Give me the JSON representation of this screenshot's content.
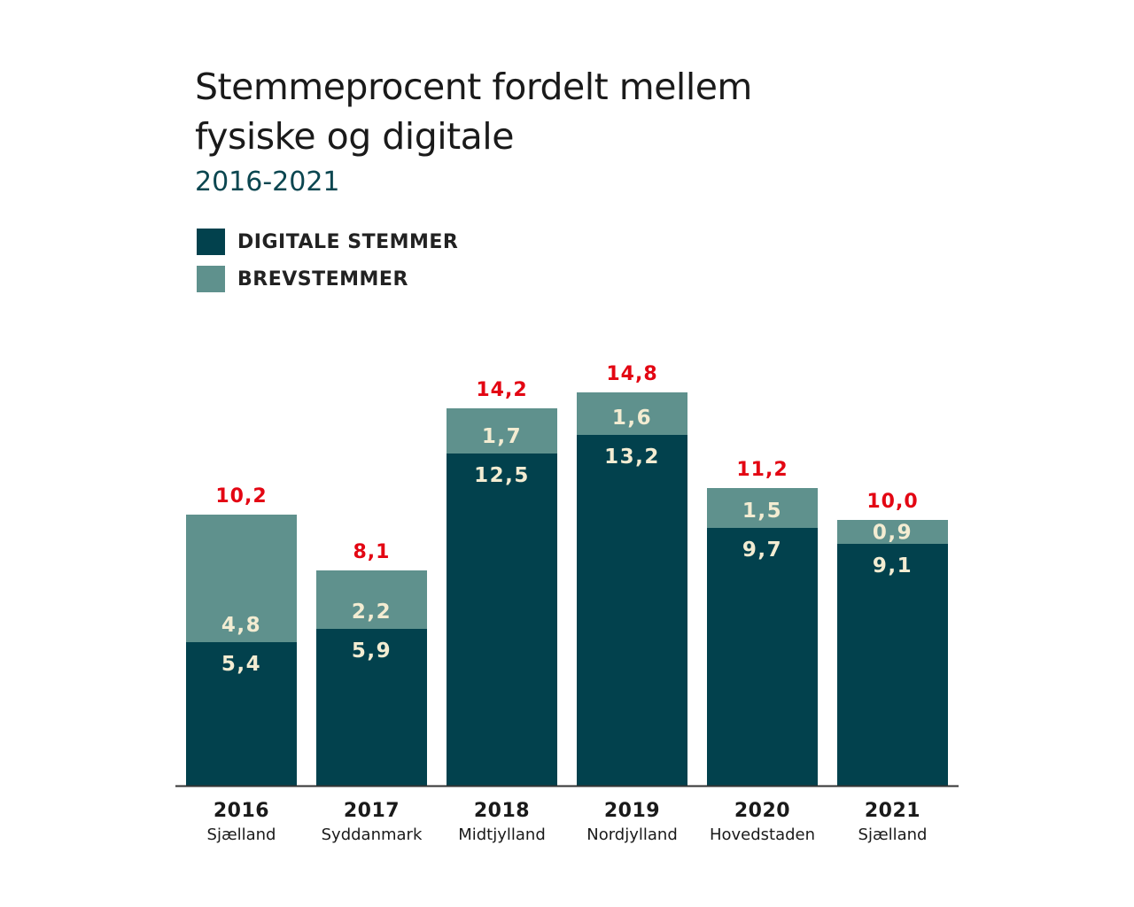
{
  "title_line1": "Stemmeprocent fordelt mellem",
  "title_line2": "fysiske og digitale",
  "subtitle": "2016-2021",
  "colors": {
    "digital": "#02414d",
    "brev": "#5f918d",
    "total_label": "#e30613",
    "segment_label": "#f3ecd2",
    "axis": "#333333"
  },
  "chart_data": {
    "type": "bar",
    "stacked": true,
    "categories": [
      "2016",
      "2017",
      "2018",
      "2019",
      "2020",
      "2021"
    ],
    "category_sublabels": [
      "Sjælland",
      "Syddanmark",
      "Midtjylland",
      "Nordjylland",
      "Hovedstaden",
      "Sjælland"
    ],
    "series": [
      {
        "name": "DIGITALE STEMMER",
        "values": [
          5.4,
          5.9,
          12.5,
          13.2,
          9.7,
          9.1
        ],
        "labels": [
          "5,4",
          "5,9",
          "12,5",
          "13,2",
          "9,7",
          "9,1"
        ]
      },
      {
        "name": "BREVSTEMMER",
        "values": [
          4.8,
          2.2,
          1.7,
          1.6,
          1.5,
          0.9
        ],
        "labels": [
          "4,8",
          "2,2",
          "1,7",
          "1,6",
          "1,5",
          "0,9"
        ]
      }
    ],
    "totals": [
      10.2,
      8.1,
      14.2,
      14.8,
      11.2,
      10.0
    ],
    "total_labels": [
      "10,2",
      "8,1",
      "14,2",
      "14,8",
      "11,2",
      "10,0"
    ],
    "ylim": [
      0,
      15
    ],
    "grid": false
  }
}
